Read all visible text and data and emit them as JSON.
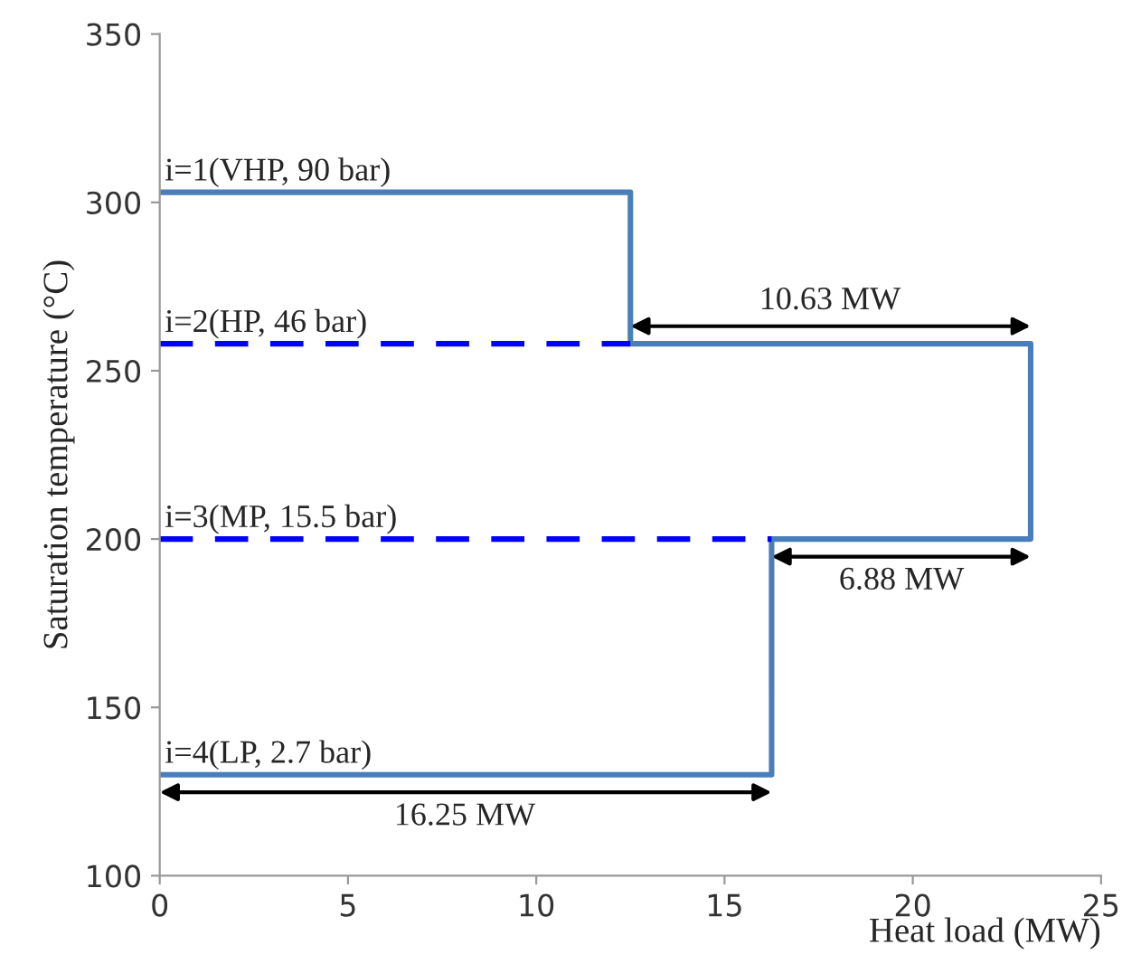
{
  "chart_data": {
    "type": "line",
    "xlabel": "Heat load (MW)",
    "ylabel": "Saturation temperature (°C)",
    "xlim": [
      0,
      25
    ],
    "xticks": [
      0,
      5,
      10,
      15,
      20,
      25
    ],
    "ylim": [
      100,
      350
    ],
    "yticks": [
      100,
      150,
      200,
      250,
      300,
      350
    ],
    "grid": false,
    "legend": false,
    "series": [
      {
        "color": "#4a7ebb",
        "line_style": "solid",
        "x": [
          0,
          12.5,
          12.5,
          23.13,
          23.13,
          16.25,
          16.25,
          0
        ],
        "values": [
          303,
          303,
          258,
          258,
          200,
          200,
          130,
          130
        ]
      },
      {
        "color": "#0000ff",
        "line_style": "dashed",
        "x": [
          0,
          12.5
        ],
        "values": [
          258,
          258
        ]
      },
      {
        "color": "#0000ff",
        "line_style": "dashed",
        "x": [
          0,
          16.25
        ],
        "values": [
          200,
          200
        ]
      }
    ],
    "annotations": [
      {
        "text": "i=1(VHP, 90 bar)",
        "x": 0,
        "y": 303
      },
      {
        "text": "i=2(HP, 46 bar)",
        "x": 0,
        "y": 258
      },
      {
        "text": "i=3(MP, 15.5 bar)",
        "x": 0,
        "y": 200
      },
      {
        "text": "i=4(LP, 2.7 bar)",
        "x": 0,
        "y": 130
      },
      {
        "text": "10.63 MW",
        "x": 17.8,
        "y": 258
      },
      {
        "text": "6.88 MW",
        "x": 19.7,
        "y": 200
      },
      {
        "text": "16.25 MW",
        "x": 8.1,
        "y": 130
      }
    ]
  }
}
